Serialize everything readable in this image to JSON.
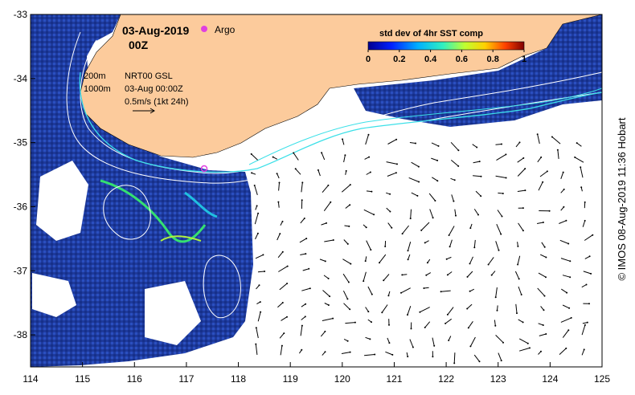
{
  "header": {
    "date": "03-Aug-2019",
    "hour": "00Z",
    "argo_label": "Argo"
  },
  "contours": {
    "label_200": "200m",
    "label_1000": "1000m"
  },
  "product": {
    "name": "NRT00 GSL",
    "time": "03-Aug 00:00Z",
    "arrow_scale": "0.5m/s (1kt 24h)"
  },
  "colorbar": {
    "title": "std dev of 4hr SST comp",
    "ticks": [
      "0",
      "0.2",
      "0.4",
      "0.6",
      "0.8",
      "1"
    ],
    "tick_values": [
      0,
      0.2,
      0.4,
      0.6,
      0.8,
      1
    ]
  },
  "axes": {
    "x_ticks": [
      "114",
      "115",
      "116",
      "117",
      "118",
      "119",
      "120",
      "121",
      "122",
      "123",
      "124",
      "125"
    ],
    "x_values": [
      114,
      115,
      116,
      117,
      118,
      119,
      120,
      121,
      122,
      123,
      124,
      125
    ],
    "y_ticks": [
      "-33",
      "-34",
      "-35",
      "-36",
      "-37",
      "-38"
    ],
    "y_values": [
      -33,
      -34,
      -35,
      -36,
      -37,
      -38
    ],
    "xlim": [
      114,
      125
    ],
    "ylim": [
      -38.5,
      -33
    ]
  },
  "credit": "© IMOS 08-Aug-2019 11:36 Hobart",
  "colors": {
    "land": "#FCCB9C",
    "ocean_field": "#1E3A9C",
    "contour": "#FFFFFF",
    "shelf_break": "#3CE0E8",
    "argo_marker": "#E040E0"
  }
}
